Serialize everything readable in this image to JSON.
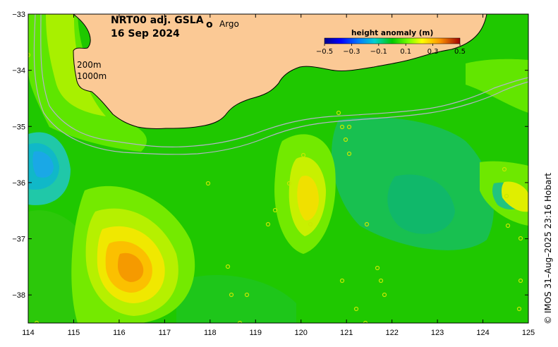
{
  "title": {
    "line1": "NRT00 adj. GSLA",
    "line2": "16 Sep 2024"
  },
  "legend": {
    "argo_marker": "o",
    "argo_label": "Argo",
    "argo_color": "#ff00ff"
  },
  "isobaths": {
    "label_200": "200m",
    "label_1000": "1000m",
    "line_color": "#b4b4c8"
  },
  "colorbar": {
    "title": "height anomaly (m)",
    "ticks": [
      "−0.5",
      "−0.3",
      "−0.1",
      "0.1",
      "0.3",
      "0.5"
    ],
    "min": -0.5,
    "max": 0.5
  },
  "axes": {
    "lon_ticks": [
      "114",
      "115",
      "116",
      "117",
      "118",
      "119",
      "120",
      "121",
      "122",
      "123",
      "124",
      "125"
    ],
    "lat_ticks": [
      "−33",
      "−34",
      "−35",
      "−36",
      "−37",
      "−38"
    ],
    "lon_range": [
      114,
      125
    ],
    "lat_range": [
      -38.5,
      -33
    ]
  },
  "copyright": "© IMOS 31–Aug–2025 23:16 Hobart",
  "colors": {
    "land": "#fbc995",
    "ocean_base": "#1fc800",
    "coastline": "#000000"
  }
}
